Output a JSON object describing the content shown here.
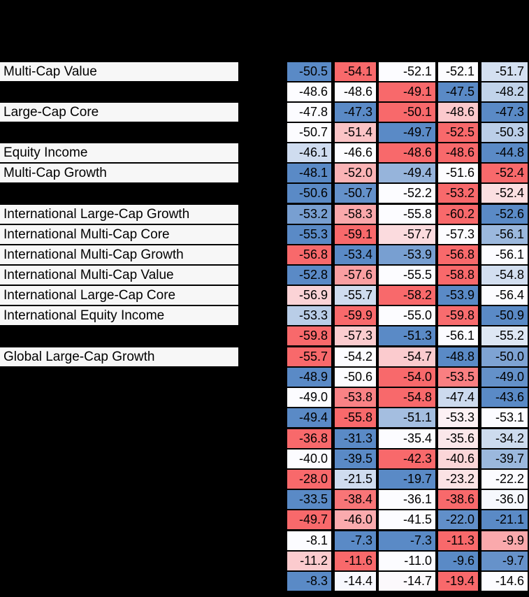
{
  "window": {
    "background": "#000000"
  },
  "table": {
    "label_cell_bg": "#F7F7F7",
    "text_color": "#000000",
    "color_scale": {
      "low_color": "#F8696B",
      "mid_color": "#FCFCFF",
      "high_color": "#5A8AC6",
      "rule": "per-row 3-color scale: row minimum = red, row median = white, row maximum = blue"
    },
    "rows": [
      {
        "label": "Multi-Cap Value",
        "values": [
          -50.5,
          -54.1,
          -52.1,
          -52.1,
          -51.7
        ],
        "section_start": false
      },
      {
        "label": "",
        "values": [
          -48.6,
          -48.6,
          -49.1,
          -47.5,
          -48.2
        ],
        "section_start": false
      },
      {
        "label": "Large-Cap Core",
        "values": [
          -47.8,
          -47.3,
          -50.1,
          -48.6,
          -47.3
        ],
        "section_start": false
      },
      {
        "label": "",
        "values": [
          -50.7,
          -51.4,
          -49.7,
          -52.5,
          -50.3
        ],
        "section_start": false
      },
      {
        "label": "Equity Income",
        "values": [
          -46.1,
          -46.6,
          -48.6,
          -48.6,
          -44.8
        ],
        "section_start": false
      },
      {
        "label": "Multi-Cap Growth",
        "values": [
          -48.1,
          -52.0,
          -49.4,
          -51.6,
          -52.4
        ],
        "section_start": false
      },
      {
        "label": "",
        "values": [
          -50.6,
          -50.7,
          -52.2,
          -53.2,
          -52.4
        ],
        "section_start": false
      },
      {
        "label": "International Large-Cap Growth",
        "values": [
          -53.2,
          -58.3,
          -55.8,
          -60.2,
          -52.6
        ],
        "section_start": true
      },
      {
        "label": "International Multi-Cap Core",
        "values": [
          -55.3,
          -59.1,
          -57.7,
          -57.3,
          -56.1
        ],
        "section_start": false
      },
      {
        "label": "International Multi-Cap Growth",
        "values": [
          -56.8,
          -53.4,
          -53.9,
          -56.8,
          -56.1
        ],
        "section_start": false
      },
      {
        "label": "International Multi-Cap Value",
        "values": [
          -52.8,
          -57.6,
          -55.5,
          -58.8,
          -54.8
        ],
        "section_start": false
      },
      {
        "label": "International Large-Cap Core",
        "values": [
          -56.9,
          -55.7,
          -58.2,
          -53.9,
          -56.4
        ],
        "section_start": false
      },
      {
        "label": "International Equity Income",
        "values": [
          -53.3,
          -59.9,
          -55.0,
          -59.8,
          -50.9
        ],
        "section_start": false
      },
      {
        "label": "",
        "values": [
          -59.8,
          -57.3,
          -51.3,
          -56.1,
          -55.2
        ],
        "section_start": false
      },
      {
        "label": "Global Large-Cap Growth",
        "values": [
          -55.7,
          -54.2,
          -54.7,
          -48.8,
          -50.0
        ],
        "section_start": true
      },
      {
        "label": "",
        "values": [
          -48.9,
          -50.6,
          -54.0,
          -53.5,
          -49.0
        ],
        "section_start": false
      },
      {
        "label": "",
        "values": [
          -49.0,
          -53.8,
          -54.8,
          -47.4,
          -43.6
        ],
        "section_start": false
      },
      {
        "label": "",
        "values": [
          -49.4,
          -55.8,
          -51.1,
          -53.3,
          -53.1
        ],
        "section_start": false
      },
      {
        "label": "",
        "values": [
          -36.8,
          -31.3,
          -35.4,
          -35.6,
          -34.2
        ],
        "section_start": true
      },
      {
        "label": "",
        "values": [
          -40.0,
          -39.5,
          -42.3,
          -40.6,
          -39.7
        ],
        "section_start": false
      },
      {
        "label": "",
        "values": [
          -28.0,
          -21.5,
          -19.7,
          -23.2,
          -22.2
        ],
        "section_start": false
      },
      {
        "label": "",
        "values": [
          -33.5,
          -38.4,
          -36.1,
          -38.6,
          -36.0
        ],
        "section_start": false
      },
      {
        "label": "",
        "values": [
          -49.7,
          -46.0,
          -41.5,
          -22.0,
          -21.1
        ],
        "section_start": false
      },
      {
        "label": "",
        "values": [
          -8.1,
          -7.3,
          -7.3,
          -11.3,
          -9.9
        ],
        "section_start": true
      },
      {
        "label": "",
        "values": [
          -11.2,
          -11.6,
          -11.0,
          -9.6,
          -9.7
        ],
        "section_start": false
      },
      {
        "label": "",
        "values": [
          -8.3,
          -14.4,
          -14.7,
          -19.4,
          -14.6
        ],
        "section_start": false
      }
    ]
  },
  "chart_data": {
    "type": "heatmap",
    "title": "",
    "n_columns": 5,
    "row_labels": [
      "Multi-Cap Value",
      "",
      "Large-Cap Core",
      "",
      "Equity Income",
      "Multi-Cap Growth",
      "",
      "International Large-Cap Growth",
      "International Multi-Cap Core",
      "International Multi-Cap Growth",
      "International Multi-Cap Value",
      "International Large-Cap Core",
      "International Equity Income",
      "",
      "Global Large-Cap Growth",
      "",
      "",
      "",
      "",
      "",
      "",
      "",
      "",
      "",
      "",
      ""
    ],
    "values": [
      [
        -50.5,
        -54.1,
        -52.1,
        -52.1,
        -51.7
      ],
      [
        -48.6,
        -48.6,
        -49.1,
        -47.5,
        -48.2
      ],
      [
        -47.8,
        -47.3,
        -50.1,
        -48.6,
        -47.3
      ],
      [
        -50.7,
        -51.4,
        -49.7,
        -52.5,
        -50.3
      ],
      [
        -46.1,
        -46.6,
        -48.6,
        -48.6,
        -44.8
      ],
      [
        -48.1,
        -52.0,
        -49.4,
        -51.6,
        -52.4
      ],
      [
        -50.6,
        -50.7,
        -52.2,
        -53.2,
        -52.4
      ],
      [
        -53.2,
        -58.3,
        -55.8,
        -60.2,
        -52.6
      ],
      [
        -55.3,
        -59.1,
        -57.7,
        -57.3,
        -56.1
      ],
      [
        -56.8,
        -53.4,
        -53.9,
        -56.8,
        -56.1
      ],
      [
        -52.8,
        -57.6,
        -55.5,
        -58.8,
        -54.8
      ],
      [
        -56.9,
        -55.7,
        -58.2,
        -53.9,
        -56.4
      ],
      [
        -53.3,
        -59.9,
        -55.0,
        -59.8,
        -50.9
      ],
      [
        -59.8,
        -57.3,
        -51.3,
        -56.1,
        -55.2
      ],
      [
        -55.7,
        -54.2,
        -54.7,
        -48.8,
        -50.0
      ],
      [
        -48.9,
        -50.6,
        -54.0,
        -53.5,
        -49.0
      ],
      [
        -49.0,
        -53.8,
        -54.8,
        -47.4,
        -43.6
      ],
      [
        -49.4,
        -55.8,
        -51.1,
        -53.3,
        -53.1
      ],
      [
        -36.8,
        -31.3,
        -35.4,
        -35.6,
        -34.2
      ],
      [
        -40.0,
        -39.5,
        -42.3,
        -40.6,
        -39.7
      ],
      [
        -28.0,
        -21.5,
        -19.7,
        -23.2,
        -22.2
      ],
      [
        -33.5,
        -38.4,
        -36.1,
        -38.6,
        -36.0
      ],
      [
        -49.7,
        -46.0,
        -41.5,
        -22.0,
        -21.1
      ],
      [
        -8.1,
        -7.3,
        -7.3,
        -11.3,
        -9.9
      ],
      [
        -11.2,
        -11.6,
        -11.0,
        -9.6,
        -9.7
      ],
      [
        -8.3,
        -14.4,
        -14.7,
        -19.4,
        -14.6
      ]
    ],
    "value_format": "one decimal place",
    "color_scale": "per-row 3-color scale: min #F8696B (red), median #FCFCFF (white), max #5A8AC6 (blue)",
    "legend_position": "none",
    "grid": "black separators between all cells and sections"
  }
}
